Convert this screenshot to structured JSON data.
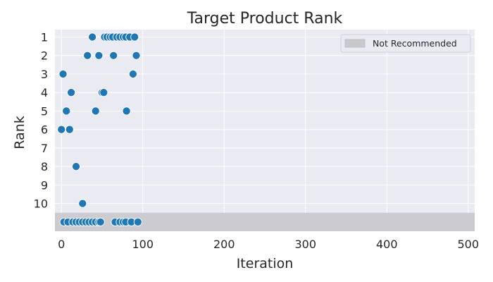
{
  "chart_data": {
    "type": "scatter",
    "title": "Target Product Rank",
    "xlabel": "Iteration",
    "ylabel": "Rank",
    "xlim": [
      -8,
      508
    ],
    "ylim": [
      11.5,
      0.6
    ],
    "y_inverted": true,
    "x_ticks": [
      0,
      100,
      200,
      300,
      400,
      500
    ],
    "y_ticks": [
      1,
      2,
      3,
      4,
      5,
      6,
      7,
      8,
      9,
      10
    ],
    "x_tick_labels": [
      "0",
      "100",
      "200",
      "300",
      "400",
      "500"
    ],
    "y_tick_labels": [
      "1",
      "2",
      "3",
      "4",
      "5",
      "6",
      "7",
      "8",
      "9",
      "10"
    ],
    "grid": true,
    "legend": {
      "placement": "top-right",
      "entries": [
        {
          "label": "Not Recommended",
          "color": "#c8c8cc"
        }
      ]
    },
    "not_recommended_band": {
      "y_from": 10.5,
      "y_to": 11.5,
      "y_value": 11,
      "color": "#c8c8cc"
    },
    "marker_color": "#1f77b4",
    "background_color": "#eaeaf2",
    "series": [
      {
        "points": [
          {
            "x": 38,
            "y": 1
          },
          {
            "x": 53,
            "y": 1
          },
          {
            "x": 56,
            "y": 1
          },
          {
            "x": 60,
            "y": 1
          },
          {
            "x": 63,
            "y": 1
          },
          {
            "x": 68,
            "y": 1
          },
          {
            "x": 72,
            "y": 1
          },
          {
            "x": 76,
            "y": 1
          },
          {
            "x": 79,
            "y": 1
          },
          {
            "x": 84,
            "y": 1
          },
          {
            "x": 90,
            "y": 1
          },
          {
            "x": 32,
            "y": 2
          },
          {
            "x": 46,
            "y": 2
          },
          {
            "x": 64,
            "y": 2
          },
          {
            "x": 92,
            "y": 2
          },
          {
            "x": 2,
            "y": 3
          },
          {
            "x": 88,
            "y": 3
          },
          {
            "x": 12,
            "y": 4
          },
          {
            "x": 50,
            "y": 4
          },
          {
            "x": 52,
            "y": 4
          },
          {
            "x": 6,
            "y": 5
          },
          {
            "x": 42,
            "y": 5
          },
          {
            "x": 80,
            "y": 5
          },
          {
            "x": 0,
            "y": 6
          },
          {
            "x": 10,
            "y": 6
          },
          {
            "x": 18,
            "y": 8
          },
          {
            "x": 26,
            "y": 10
          },
          {
            "x": 3,
            "y": 11
          },
          {
            "x": 8,
            "y": 11
          },
          {
            "x": 14,
            "y": 11
          },
          {
            "x": 18,
            "y": 11
          },
          {
            "x": 22,
            "y": 11
          },
          {
            "x": 26,
            "y": 11
          },
          {
            "x": 30,
            "y": 11
          },
          {
            "x": 34,
            "y": 11
          },
          {
            "x": 38,
            "y": 11
          },
          {
            "x": 42,
            "y": 11
          },
          {
            "x": 46,
            "y": 11
          },
          {
            "x": 48,
            "y": 11
          },
          {
            "x": 66,
            "y": 11
          },
          {
            "x": 72,
            "y": 11
          },
          {
            "x": 76,
            "y": 11
          },
          {
            "x": 79,
            "y": 11
          },
          {
            "x": 86,
            "y": 11
          },
          {
            "x": 94,
            "y": 11
          }
        ]
      }
    ]
  }
}
